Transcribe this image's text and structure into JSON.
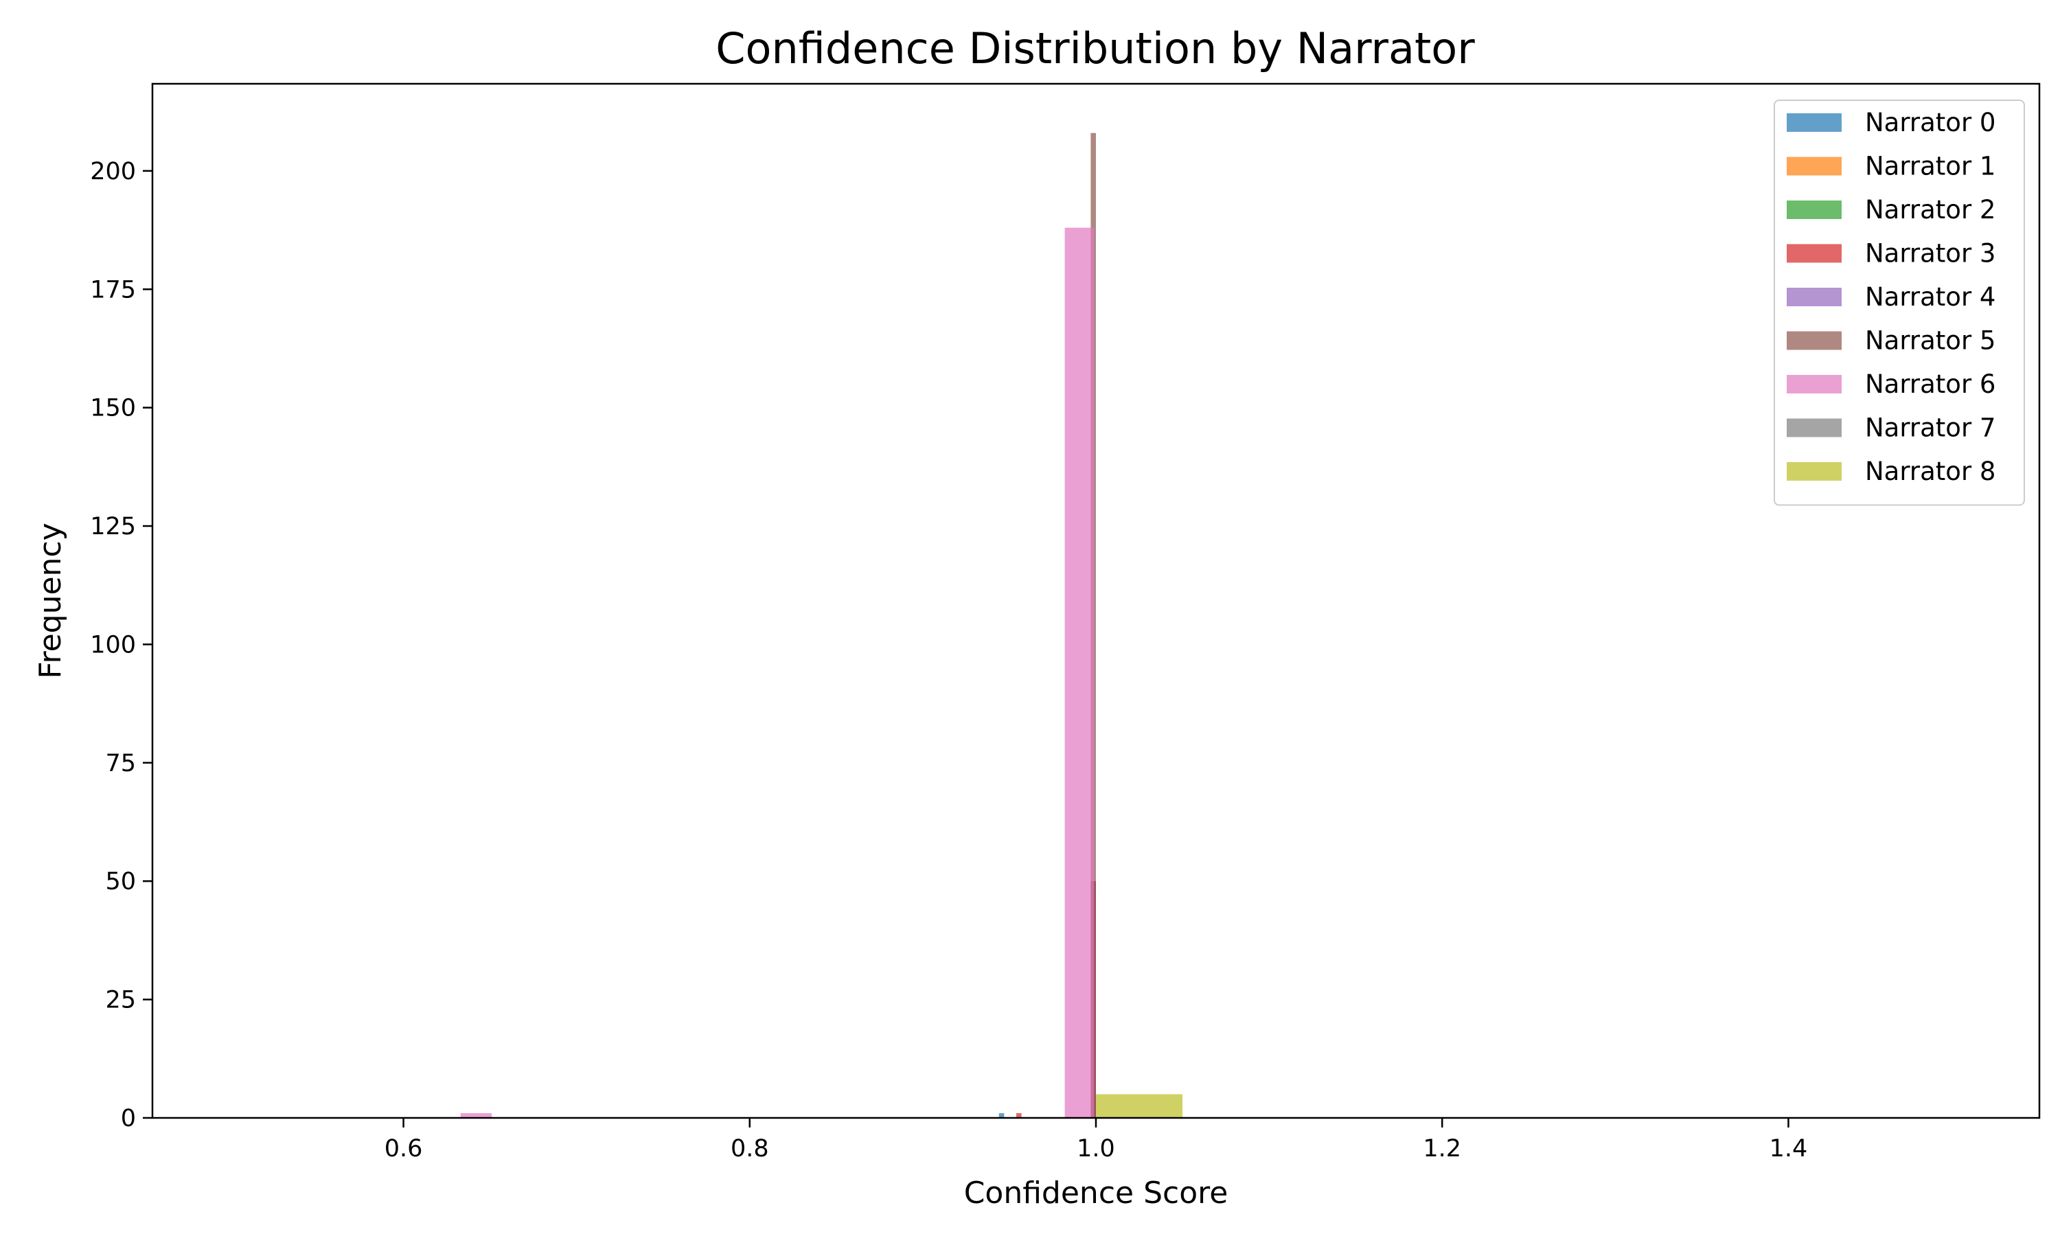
{
  "chart_data": {
    "type": "bar",
    "title": "Confidence Distribution by Narrator",
    "xlabel": "Confidence Score",
    "ylabel": "Frequency",
    "xlim": [
      0.455,
      1.545
    ],
    "ylim": [
      0,
      218.4
    ],
    "xticks": [
      0.6,
      0.8,
      1.0,
      1.2,
      1.4
    ],
    "xtick_labels": [
      "0.6",
      "0.8",
      "1.0",
      "1.2",
      "1.4"
    ],
    "yticks": [
      0,
      25,
      50,
      75,
      100,
      125,
      150,
      175,
      200
    ],
    "ytick_labels": [
      "0",
      "25",
      "50",
      "75",
      "100",
      "125",
      "150",
      "175",
      "200"
    ],
    "grid": false,
    "legend_position": "top-right",
    "series": [
      {
        "name": "Narrator 0",
        "color": "#1f77b4",
        "bins": [
          {
            "x0": 0.944,
            "x1": 0.947,
            "value": 1
          },
          {
            "x0": 0.997,
            "x1": 1.0,
            "value": 50
          }
        ]
      },
      {
        "name": "Narrator 1",
        "color": "#ff7f0e",
        "bins": []
      },
      {
        "name": "Narrator 2",
        "color": "#2ca02c",
        "bins": []
      },
      {
        "name": "Narrator 3",
        "color": "#d62728",
        "bins": [
          {
            "x0": 0.954,
            "x1": 0.957,
            "value": 1
          },
          {
            "x0": 0.997,
            "x1": 1.0,
            "value": 50
          }
        ]
      },
      {
        "name": "Narrator 4",
        "color": "#9467bd",
        "bins": []
      },
      {
        "name": "Narrator 5",
        "color": "#8c564b",
        "bins": [
          {
            "x0": 0.997,
            "x1": 1.0,
            "value": 208
          }
        ]
      },
      {
        "name": "Narrator 6",
        "color": "#e377c2",
        "bins": [
          {
            "x0": 0.633,
            "x1": 0.651,
            "value": 1
          },
          {
            "x0": 0.982,
            "x1": 0.999,
            "value": 188
          }
        ]
      },
      {
        "name": "Narrator 7",
        "color": "#7f7f7f",
        "bins": []
      },
      {
        "name": "Narrator 8",
        "color": "#bcbd22",
        "bins": [
          {
            "x0": 1.0,
            "x1": 1.05,
            "value": 5
          }
        ]
      }
    ]
  }
}
